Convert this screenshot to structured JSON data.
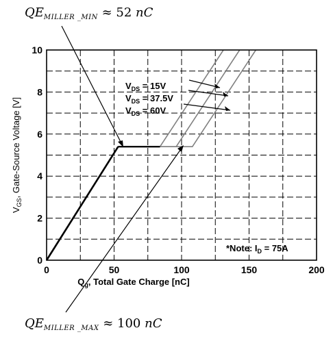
{
  "annotations": {
    "min": {
      "lhs": "QE",
      "sub": "MILLER _MIN",
      "approx": "≈",
      "value": "52",
      "unit": "nC"
    },
    "max": {
      "lhs": "QE",
      "sub": "MILLER _MAX",
      "approx": "≈",
      "value": "100",
      "unit": "nC"
    }
  },
  "colors": {
    "axis": "#000000",
    "grid": "#000000",
    "curve_main": "#000000",
    "curve_light": "#808080",
    "background": "#ffffff"
  },
  "chart_data": {
    "type": "line",
    "xlabel": "Qg, Total Gate Charge [nC]",
    "xlabel_parts": {
      "main": "Q",
      "sub": "g",
      "rest": ", Total Gate Charge [nC]"
    },
    "ylabel": "VGS, Gate-Source Voltage [V]",
    "ylabel_parts": {
      "main": "V",
      "sub": "GS",
      "rest": ", Gate-Source Voltage [V]"
    },
    "xlim": [
      0,
      200
    ],
    "ylim": [
      0,
      10
    ],
    "x_ticks": [
      0,
      50,
      100,
      150,
      200
    ],
    "y_ticks": [
      0,
      2,
      4,
      6,
      8,
      10
    ],
    "grid": true,
    "series": [
      {
        "name": "VDS = 15V",
        "x": [
          0,
          53,
          84,
          131
        ],
        "y": [
          0,
          5.4,
          5.4,
          10
        ]
      },
      {
        "name": "VDS = 37.5V",
        "x": [
          0,
          53,
          96,
          143
        ],
        "y": [
          0,
          5.4,
          5.4,
          10
        ]
      },
      {
        "name": "VDS = 60V",
        "x": [
          0,
          53,
          108,
          155
        ],
        "y": [
          0,
          5.4,
          5.4,
          10
        ]
      }
    ],
    "legend_labels": [
      {
        "main": "V",
        "sub": "DS",
        "rest": " = 15V"
      },
      {
        "main": "V",
        "sub": "DS",
        "rest": " = 37.5V"
      },
      {
        "main": "V",
        "sub": "DS",
        "rest": " = 60V"
      }
    ],
    "note": {
      "main": "*Note: I",
      "sub": "D",
      "rest": " = 75A"
    }
  }
}
